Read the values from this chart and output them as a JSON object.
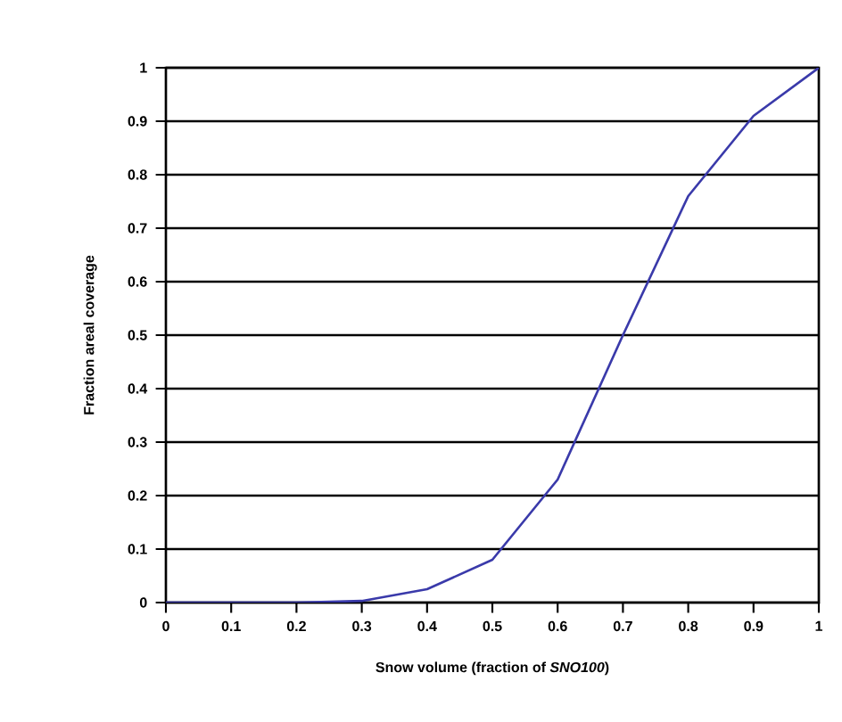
{
  "chart_data": {
    "type": "line",
    "xlabel": "Snow volume (fraction of *SNO100*)",
    "ylabel": "Fraction areal coverage",
    "x": [
      0,
      0.1,
      0.2,
      0.3,
      0.4,
      0.5,
      0.6,
      0.7,
      0.8,
      0.9,
      1
    ],
    "series": [
      {
        "color": "#3a3aaa",
        "values": [
          0,
          0,
          0,
          0.003,
          0.025,
          0.08,
          0.23,
          0.5,
          0.76,
          0.91,
          1
        ]
      }
    ],
    "xlim": [
      0,
      1
    ],
    "ylim": [
      0,
      1
    ],
    "xticks": [
      0,
      0.1,
      0.2,
      0.3,
      0.4,
      0.5,
      0.6,
      0.7,
      0.8,
      0.9,
      1
    ],
    "yticks": [
      0,
      0.1,
      0.2,
      0.3,
      0.4,
      0.5,
      0.6,
      0.7,
      0.8,
      0.9,
      1
    ],
    "grid": "y"
  }
}
